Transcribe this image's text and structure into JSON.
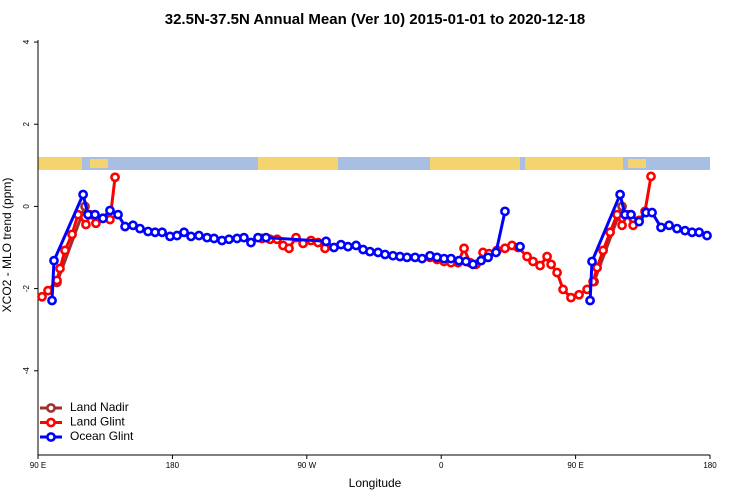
{
  "chart_data": {
    "type": "line",
    "title": "32.5N-37.5N Annual Mean (Ver 10)   2015-01-01 to 2020-12-18",
    "x_label": "Longitude",
    "y_label": "XCO2 - MLO trend (ppm)",
    "xlim": [
      90,
      540
    ],
    "xticks": [
      {
        "value": 90,
        "label": "90 E"
      },
      {
        "value": 180,
        "label": "180"
      },
      {
        "value": 270,
        "label": "90 W"
      },
      {
        "value": 360,
        "label": "0"
      },
      {
        "value": 450,
        "label": "90 E"
      },
      {
        "value": 540,
        "label": "180"
      }
    ],
    "ylim": [
      -6.05,
      4.05
    ],
    "yticks": [
      -4,
      -2,
      0,
      2,
      4
    ],
    "legend": "bottomleft",
    "series": [
      {
        "name": "Land Nadir",
        "color": "#a0302f",
        "x": [
          102.7,
          121.5,
          null,
          462.4,
          481.1
        ],
        "values": [
          -1.85,
          0.0,
          null,
          -1.83,
          0.0
        ]
      },
      {
        "name": "Land Glint",
        "color": "#ff0000",
        "x": [
          92.7,
          96.7,
          102.7,
          104.7,
          108.1,
          112.8,
          116.8,
          122.1,
          124.8,
          128.8,
          133.5,
          138.2,
          141.6,
          null,
          240.0,
          245.4,
          250.1,
          254.1,
          258.1,
          262.8,
          267.5,
          272.8,
          277.5,
          282.2,
          null,
          352.5,
          357.2,
          361.9,
          366.6,
          371.3,
          375.3,
          379.3,
          383.3,
          388.0,
          392.0,
          397.4,
          402.7,
          407.4,
          411.5,
          417.5,
          421.5,
          426.2,
          430.9,
          433.6,
          437.6,
          441.6,
          446.9,
          452.3,
          457.7,
          461.7,
          464.4,
          468.4,
          473.1,
          477.8,
          481.1,
          484.5,
          488.5,
          492.5,
          496.5,
          500.5
        ],
        "values": [
          -2.2,
          -2.05,
          -1.8,
          -1.51,
          -1.07,
          -0.68,
          -0.2,
          -0.44,
          -0.2,
          -0.41,
          -0.29,
          -0.32,
          0.71,
          null,
          -0.78,
          -0.8,
          -0.8,
          -0.95,
          -1.02,
          -0.76,
          -0.9,
          -0.83,
          -0.88,
          -1.02,
          null,
          -1.24,
          -1.29,
          -1.34,
          -1.37,
          -1.37,
          -1.02,
          -1.37,
          -1.41,
          -1.12,
          -1.15,
          -1.07,
          -1.02,
          -0.95,
          -1.0,
          -1.22,
          -1.34,
          -1.44,
          -1.22,
          -1.41,
          -1.61,
          -2.02,
          -2.22,
          -2.15,
          -2.02,
          -1.83,
          -1.49,
          -1.07,
          -0.63,
          -0.2,
          -0.46,
          -0.2,
          -0.46,
          -0.34,
          -0.12,
          0.73
        ]
      },
      {
        "name": "Ocean Glint",
        "color": "#0000ff",
        "x": [
          99.4,
          100.7,
          120.2,
          123.5,
          128.2,
          133.5,
          138.2,
          143.6,
          148.3,
          153.6,
          158.3,
          163.7,
          168.4,
          173.1,
          178.4,
          183.1,
          187.8,
          192.5,
          197.8,
          203.2,
          207.9,
          213.2,
          217.9,
          223.3,
          227.9,
          232.6,
          237.3,
          242.7,
          282.9,
          288.2,
          292.9,
          297.6,
          303.0,
          307.7,
          312.3,
          317.7,
          322.4,
          327.7,
          332.4,
          337.1,
          342.5,
          347.2,
          352.5,
          357.2,
          361.9,
          366.6,
          371.9,
          376.6,
          381.3,
          386.7,
          391.4,
          396.7,
          402.7,
          null,
          412.8,
          null,
          459.7,
          461.0,
          479.8,
          483.1,
          487.1,
          492.5,
          497.2,
          501.2,
          507.2,
          512.6,
          517.9,
          523.3,
          528.0,
          532.7,
          538.0
        ],
        "values": [
          -2.29,
          -1.32,
          0.29,
          -0.2,
          -0.2,
          -0.29,
          -0.1,
          -0.2,
          -0.49,
          -0.46,
          -0.54,
          -0.61,
          -0.63,
          -0.63,
          -0.73,
          -0.71,
          -0.63,
          -0.73,
          -0.71,
          -0.76,
          -0.78,
          -0.83,
          -0.8,
          -0.78,
          -0.76,
          -0.88,
          -0.76,
          -0.76,
          -0.85,
          -1.0,
          -0.93,
          -0.98,
          -0.95,
          -1.05,
          -1.1,
          -1.12,
          -1.17,
          -1.2,
          -1.22,
          -1.24,
          -1.24,
          -1.27,
          -1.2,
          -1.24,
          -1.27,
          -1.27,
          -1.32,
          -1.34,
          -1.41,
          -1.32,
          -1.24,
          -1.12,
          -0.12,
          null,
          -0.98,
          null,
          -2.29,
          -1.34,
          0.29,
          -0.2,
          -0.2,
          -0.37,
          -0.15,
          -0.15,
          -0.51,
          -0.46,
          -0.54,
          -0.59,
          -0.63,
          -0.63,
          -0.71
        ]
      }
    ]
  }
}
